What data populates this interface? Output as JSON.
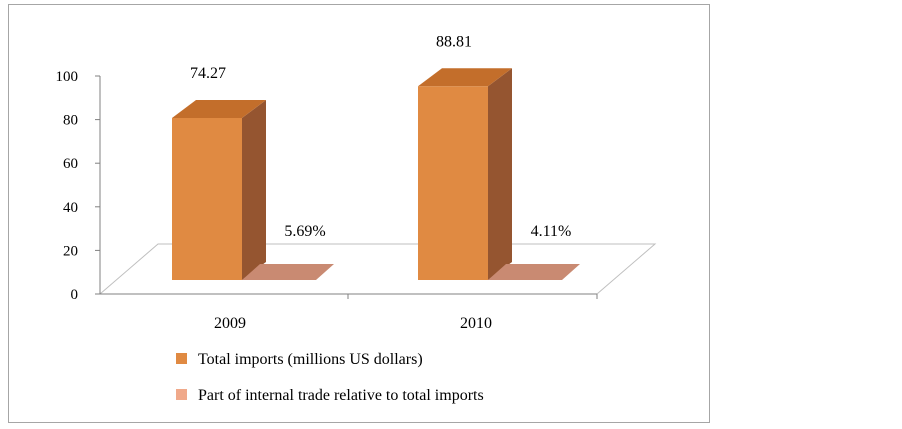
{
  "chart_data": {
    "type": "bar",
    "categories": [
      "2009",
      "2010"
    ],
    "series": [
      {
        "name": "Total imports (millions US dollars)",
        "values": [
          74.27,
          88.81
        ],
        "labels": [
          "74.27",
          "88.81"
        ],
        "color": "#e08a42",
        "top_color": "#c36e2b",
        "side_color": "#955530"
      },
      {
        "name": "Part of internal trade relative to total imports",
        "values": [
          5.69,
          4.11
        ],
        "labels": [
          "5.69%",
          "4.11%"
        ],
        "color": "#f0a98a",
        "top_color": "#c98a72",
        "side_color": "#a8705c"
      }
    ],
    "y_ticks": [
      "0",
      "20",
      "40",
      "60",
      "80",
      "100"
    ],
    "ylim": [
      0,
      100
    ],
    "grid": false,
    "legend_position": "bottom",
    "style": "3d-column"
  }
}
